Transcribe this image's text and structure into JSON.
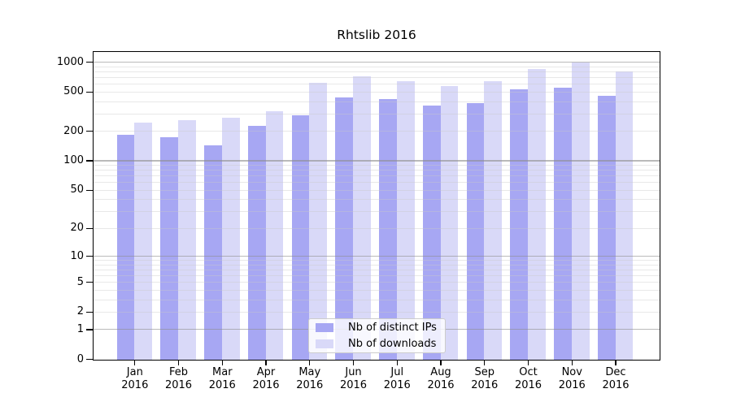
{
  "title": "Rhtslib 2016",
  "colors": {
    "bar_distinct_ips": "#a7a7f3",
    "bar_downloads": "#d9d9f8",
    "axis": "#000000",
    "grid_major": "#8f8f8f",
    "grid_minor": "#c9c9c9",
    "legend_border": "#cccccc"
  },
  "chart_data": {
    "type": "bar",
    "title": "Rhtslib 2016",
    "categories": [
      "Jan",
      "Feb",
      "Mar",
      "Apr",
      "May",
      "Jun",
      "Jul",
      "Aug",
      "Sep",
      "Oct",
      "Nov",
      "Dec"
    ],
    "year_label": "2016",
    "series": [
      {
        "name": "Nb of distinct IPs",
        "color": "#a7a7f3",
        "values": [
          185,
          177,
          145,
          230,
          295,
          443,
          424,
          366,
          390,
          540,
          555,
          460
        ]
      },
      {
        "name": "Nb of downloads",
        "color": "#d9d9f8",
        "values": [
          245,
          262,
          275,
          322,
          625,
          723,
          645,
          574,
          653,
          860,
          995,
          820
        ]
      }
    ],
    "y_axis": {
      "scale": "log1p",
      "ticks": [
        0,
        1,
        2,
        5,
        10,
        20,
        50,
        100,
        200,
        500,
        1000
      ],
      "ylim": [
        0,
        1260
      ]
    },
    "grid": {
      "major": [
        1,
        10,
        100,
        1000
      ],
      "minor": [
        2,
        3,
        4,
        5,
        6,
        7,
        8,
        9,
        20,
        30,
        40,
        50,
        60,
        70,
        80,
        90,
        200,
        300,
        400,
        500,
        600,
        700,
        800,
        900
      ]
    },
    "legend_position": "lower-center",
    "legend_items": [
      "Nb of distinct IPs",
      "Nb of downloads"
    ]
  }
}
